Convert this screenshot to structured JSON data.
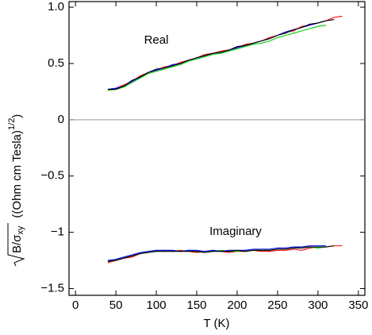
{
  "chart_data": {
    "type": "line",
    "x_label": "T  (K)",
    "y_label": {
      "radicand": "B/σ",
      "subscript": "xy",
      "unit": "((Ohm cm Tesla)",
      "superscript": "1/2",
      "close": ")"
    },
    "annotations": [
      "Real",
      "Imaginary"
    ],
    "hline": 0,
    "xlim": [
      -8,
      358
    ],
    "ylim": [
      -1.56,
      1.05
    ],
    "xticks": [
      0,
      50,
      100,
      150,
      200,
      250,
      300,
      350
    ],
    "yticks": [
      {
        "value": -1.5,
        "label": "−1.5"
      },
      {
        "value": -1,
        "label": "−1"
      },
      {
        "value": -0.5,
        "label": "−0.5"
      },
      0,
      0.5,
      {
        "value": 1,
        "label": "1.0"
      }
    ],
    "x": [
      40,
      50,
      60,
      70,
      80,
      90,
      100,
      110,
      120,
      130,
      140,
      150,
      160,
      170,
      180,
      190,
      200,
      210,
      220,
      230,
      240,
      250,
      260,
      270,
      280,
      290,
      300,
      310,
      320,
      330
    ],
    "series": [
      {
        "color": "#ff0000",
        "values": [
          0.27,
          0.28,
          0.31,
          0.34,
          0.39,
          0.42,
          0.44,
          0.47,
          0.48,
          0.51,
          0.53,
          0.55,
          0.58,
          0.59,
          0.61,
          0.62,
          0.64,
          0.67,
          0.68,
          0.7,
          0.73,
          0.75,
          0.78,
          0.79,
          0.83,
          0.84,
          0.86,
          0.88,
          0.91,
          0.92
        ]
      },
      {
        "color": "#00cc00",
        "values": [
          0.26,
          0.27,
          0.29,
          0.33,
          0.37,
          0.41,
          0.43,
          0.45,
          0.47,
          0.49,
          0.52,
          0.54,
          0.56,
          0.58,
          0.59,
          0.61,
          0.63,
          0.65,
          0.67,
          0.68,
          0.7,
          0.73,
          0.75,
          0.77,
          0.79,
          0.81,
          0.83,
          0.84,
          null,
          null
        ]
      },
      {
        "color": "#0000ff",
        "values": [
          0.27,
          0.28,
          0.3,
          0.34,
          0.38,
          0.42,
          0.44,
          0.46,
          0.49,
          0.5,
          0.53,
          0.55,
          0.57,
          0.59,
          0.6,
          0.62,
          0.64,
          0.66,
          0.68,
          0.7,
          0.72,
          0.75,
          0.78,
          0.8,
          0.82,
          0.84,
          0.86,
          0.88,
          null,
          null
        ]
      },
      {
        "color": "#000000",
        "values": [
          0.27,
          0.27,
          0.3,
          0.35,
          0.38,
          0.42,
          0.45,
          0.46,
          0.48,
          0.5,
          0.53,
          0.55,
          0.57,
          0.59,
          0.6,
          0.62,
          0.65,
          0.66,
          0.68,
          0.7,
          0.72,
          0.75,
          0.77,
          0.8,
          0.82,
          0.85,
          0.86,
          0.88,
          0.89,
          null
        ]
      },
      {
        "color": "#ff0000",
        "values": [
          -1.27,
          -1.25,
          -1.23,
          -1.22,
          -1.19,
          -1.17,
          -1.17,
          -1.16,
          -1.17,
          -1.16,
          -1.17,
          -1.18,
          -1.17,
          -1.16,
          -1.17,
          -1.18,
          -1.17,
          -1.17,
          -1.16,
          -1.17,
          -1.17,
          -1.16,
          -1.16,
          -1.15,
          -1.16,
          -1.14,
          -1.13,
          -1.13,
          -1.12,
          -1.12
        ]
      },
      {
        "color": "#00cc00",
        "values": [
          -1.26,
          -1.24,
          -1.22,
          -1.21,
          -1.18,
          -1.18,
          -1.16,
          -1.17,
          -1.16,
          -1.17,
          -1.16,
          -1.17,
          -1.17,
          -1.17,
          -1.16,
          -1.17,
          -1.17,
          -1.16,
          -1.16,
          -1.15,
          -1.16,
          -1.15,
          -1.15,
          -1.14,
          -1.13,
          -1.13,
          -1.14,
          -1.13,
          null,
          null
        ]
      },
      {
        "color": "#0000ff",
        "values": [
          -1.25,
          -1.24,
          -1.22,
          -1.2,
          -1.18,
          -1.17,
          -1.16,
          -1.16,
          -1.16,
          -1.17,
          -1.16,
          -1.16,
          -1.17,
          -1.16,
          -1.17,
          -1.16,
          -1.16,
          -1.16,
          -1.15,
          -1.15,
          -1.15,
          -1.14,
          -1.14,
          -1.13,
          -1.13,
          -1.12,
          -1.12,
          -1.12,
          null,
          null
        ]
      },
      {
        "color": "#000000",
        "values": [
          -1.26,
          -1.25,
          -1.23,
          -1.21,
          -1.19,
          -1.18,
          -1.17,
          -1.17,
          -1.17,
          -1.17,
          -1.17,
          -1.17,
          -1.18,
          -1.17,
          -1.17,
          -1.17,
          -1.16,
          -1.17,
          -1.16,
          -1.16,
          -1.16,
          -1.15,
          -1.15,
          -1.14,
          -1.14,
          -1.13,
          -1.13,
          -1.13,
          -1.12,
          null
        ]
      }
    ]
  }
}
